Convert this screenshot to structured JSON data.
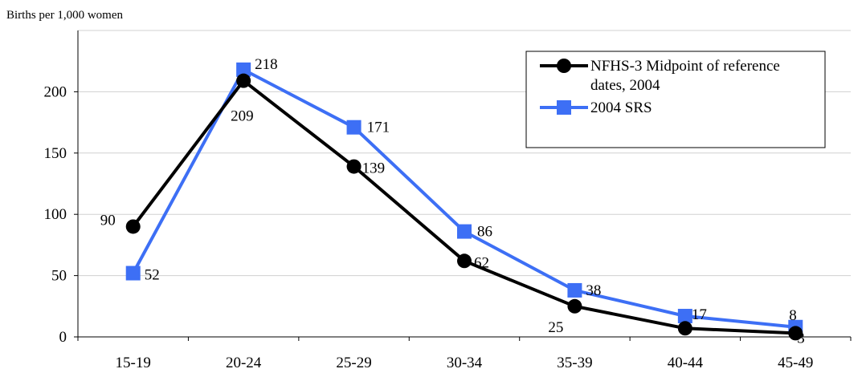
{
  "chart_data": {
    "type": "line",
    "ylabel": "Births per 1,000 women",
    "categories": [
      "15-19",
      "20-24",
      "25-29",
      "30-34",
      "35-39",
      "40-44",
      "45-49"
    ],
    "ylim": [
      0,
      250
    ],
    "yticks": [
      0,
      50,
      100,
      150,
      200
    ],
    "grid": true,
    "legend_position": "top-right",
    "series": [
      {
        "name": "NFHS-3 Midpoint of reference dates, 2004",
        "legend_lines": [
          "NFHS-3 Midpoint of reference",
          "dates, 2004"
        ],
        "values": [
          90,
          209,
          139,
          62,
          25,
          7,
          3
        ],
        "color": "#000000",
        "marker": "circle"
      },
      {
        "name": "2004 SRS",
        "legend_lines": [
          "2004 SRS"
        ],
        "values": [
          52,
          218,
          171,
          86,
          38,
          17,
          8
        ],
        "color": "#3d6ff5",
        "marker": "square"
      }
    ]
  }
}
